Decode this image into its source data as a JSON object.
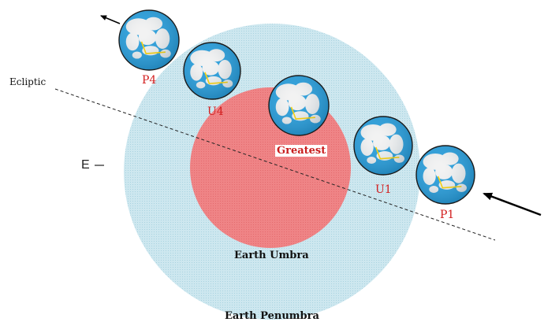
{
  "colors": {
    "penumbra": "#bfe0ea",
    "umbra": "#ee7b7d",
    "moon_ocean": "#2a9fdc",
    "moon_land": "#f2f2f2",
    "track": "#ffd400",
    "label_red": "#d21e1e"
  },
  "labels": {
    "ecliptic": "Ecliptic",
    "e_marker": "E",
    "umbra": "Earth Umbra",
    "penumbra": "Earth Penumbra"
  },
  "moon_positions": [
    {
      "id": "P4",
      "label": "P4"
    },
    {
      "id": "U4",
      "label": "U4"
    },
    {
      "id": "Greatest",
      "label": "Greatest"
    },
    {
      "id": "U1",
      "label": "U1"
    },
    {
      "id": "P1",
      "label": "P1"
    }
  ],
  "icons": {
    "motion_in": "arrow-icon",
    "motion_out": "arrow-icon"
  }
}
